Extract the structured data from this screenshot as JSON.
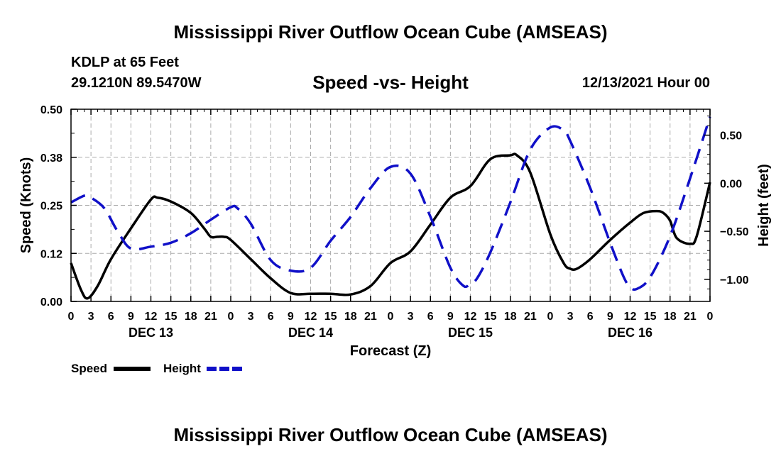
{
  "header": {
    "title": "Mississippi River Outflow Ocean Cube (AMSEAS)",
    "station": "KDLP at 65 Feet",
    "coords": "29.1210N  89.5470W",
    "subtitle": "Speed -vs- Height",
    "timestamp": "12/13/2021 Hour 00"
  },
  "footer": {
    "title": "Mississippi River Outflow Ocean Cube (AMSEAS)"
  },
  "chart_data": {
    "type": "line",
    "title": "Speed -vs- Height",
    "xlabel": "Forecast (Z)",
    "ylabel": "Speed (Knots)",
    "y2label": "Height (feet)",
    "xlim": [
      0,
      96
    ],
    "ylim": [
      0,
      0.5
    ],
    "y2lim": [
      -1.23,
      0.77
    ],
    "x_tick_values": [
      0,
      3,
      6,
      9,
      12,
      15,
      18,
      21,
      24,
      27,
      30,
      33,
      36,
      39,
      42,
      45,
      48,
      51,
      54,
      57,
      60,
      63,
      66,
      69,
      72,
      75,
      78,
      81,
      84,
      87,
      90,
      93,
      96
    ],
    "x_tick_labels": [
      "0",
      "3",
      "6",
      "9",
      "12",
      "15",
      "18",
      "21",
      "0",
      "3",
      "6",
      "9",
      "12",
      "15",
      "18",
      "21",
      "0",
      "3",
      "6",
      "9",
      "12",
      "15",
      "18",
      "21",
      "0",
      "3",
      "6",
      "9",
      "12",
      "15",
      "18",
      "21",
      "0"
    ],
    "day_labels": [
      {
        "label": "DEC 13",
        "x": 12
      },
      {
        "label": "DEC 14",
        "x": 36
      },
      {
        "label": "DEC 15",
        "x": 60
      },
      {
        "label": "DEC 16",
        "x": 84
      }
    ],
    "y_ticks": [
      0,
      0.125,
      0.25,
      0.375,
      0.5
    ],
    "y_tick_labels": [
      "0.00",
      "0.12",
      "0.25",
      "0.38",
      "0.50"
    ],
    "y2_ticks": [
      0.5,
      0,
      -0.5,
      -1.0
    ],
    "y2_tick_labels": [
      "0.50",
      "0.00",
      "−0.50",
      "−1.00"
    ],
    "grid": true,
    "legend": [
      {
        "name": "Speed",
        "color": "#000000",
        "style": "solid"
      },
      {
        "name": "Height",
        "color": "#1010c8",
        "style": "dashed"
      }
    ],
    "series": [
      {
        "name": "Speed",
        "axis": "left",
        "color": "#000000",
        "style": "solid",
        "x": [
          0,
          1.5,
          2.5,
          4,
          6,
          9,
          12,
          13,
          15,
          18,
          20,
          21,
          22,
          23,
          24,
          27,
          30,
          33,
          36,
          39,
          42,
          45,
          48,
          51,
          54,
          57,
          60,
          63,
          66,
          67,
          69,
          72,
          74,
          75,
          76,
          78,
          81,
          84,
          86,
          88,
          89,
          90,
          91,
          93,
          94,
          96
        ],
        "values": [
          0.1,
          0.03,
          0.008,
          0.04,
          0.11,
          0.19,
          0.265,
          0.27,
          0.26,
          0.23,
          0.19,
          0.168,
          0.168,
          0.168,
          0.16,
          0.11,
          0.06,
          0.022,
          0.02,
          0.02,
          0.018,
          0.04,
          0.1,
          0.13,
          0.2,
          0.27,
          0.3,
          0.37,
          0.38,
          0.38,
          0.335,
          0.175,
          0.1,
          0.085,
          0.085,
          0.11,
          0.16,
          0.205,
          0.23,
          0.235,
          0.23,
          0.21,
          0.165,
          0.15,
          0.17,
          0.31
        ]
      },
      {
        "name": "Height",
        "axis": "right",
        "color": "#1010c8",
        "style": "dashed",
        "x": [
          0,
          2,
          3,
          5,
          7,
          9,
          12,
          15,
          18,
          21,
          24,
          25,
          27,
          30,
          33,
          36,
          39,
          42,
          45,
          48,
          51,
          54,
          57,
          59,
          60,
          61,
          63,
          66,
          69,
          72,
          74,
          75,
          78,
          81,
          83,
          84,
          85,
          87,
          90,
          93,
          96
        ],
        "values": [
          -0.2,
          -0.13,
          -0.15,
          -0.26,
          -0.5,
          -0.68,
          -0.66,
          -0.62,
          -0.52,
          -0.38,
          -0.25,
          -0.26,
          -0.42,
          -0.8,
          -0.91,
          -0.88,
          -0.6,
          -0.35,
          -0.05,
          0.17,
          0.1,
          -0.35,
          -0.88,
          -1.07,
          -1.04,
          -0.99,
          -0.72,
          -0.2,
          0.35,
          0.58,
          0.55,
          0.44,
          -0.05,
          -0.62,
          -0.97,
          -1.08,
          -1.1,
          -0.98,
          -0.55,
          0.05,
          0.69
        ]
      }
    ]
  }
}
